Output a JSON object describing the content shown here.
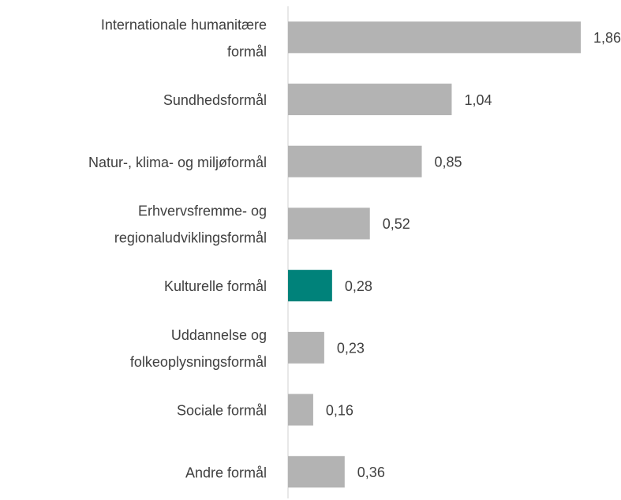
{
  "chart_data": {
    "type": "bar",
    "orientation": "horizontal",
    "categories": [
      [
        "Internationale humanitære",
        "formål"
      ],
      [
        "Sundhedsformål"
      ],
      [
        "Natur-, klima- og miljøformål"
      ],
      [
        "Erhvervsfremme- og",
        "regionaludviklingsformål"
      ],
      [
        "Kulturelle formål"
      ],
      [
        "Uddannelse og",
        "folkeoplysningsformål"
      ],
      [
        "Sociale formål"
      ],
      [
        "Andre formål"
      ]
    ],
    "values": [
      1.86,
      1.04,
      0.85,
      0.52,
      0.28,
      0.23,
      0.16,
      0.36
    ],
    "value_labels": [
      "1,86",
      "1,04",
      "0,85",
      "0,52",
      "0,28",
      "0,23",
      "0,16",
      "0,36"
    ],
    "colors": [
      "#b3b3b3",
      "#b3b3b3",
      "#b3b3b3",
      "#b3b3b3",
      "#00827a",
      "#b3b3b3",
      "#b3b3b3",
      "#b3b3b3"
    ]
  }
}
